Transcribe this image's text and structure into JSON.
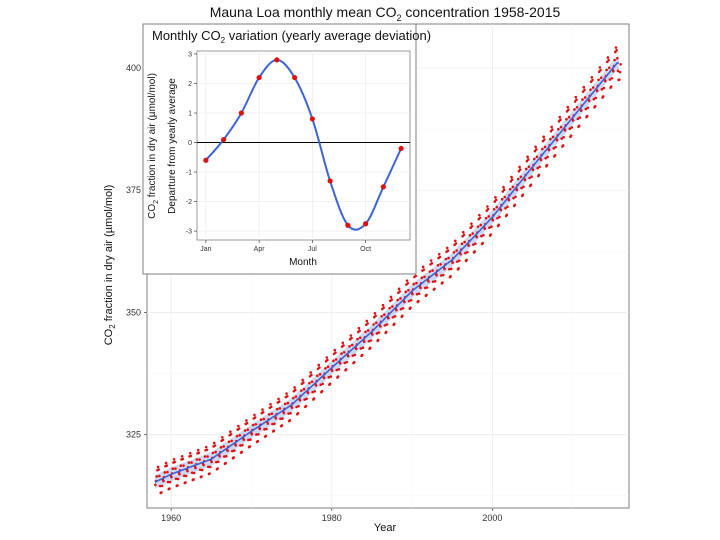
{
  "chart_data": [
    {
      "id": "main",
      "type": "scatter",
      "title": "Mauna Loa monthly mean CO2 concentration 1958-2015",
      "title_parts": [
        "Mauna Loa monthly mean CO",
        "2",
        " concentration 1958-2015"
      ],
      "xlabel": "Year",
      "ylabel": "CO2 fraction in dry air (µmol/mol)",
      "ylabel_parts": [
        "CO",
        "2",
        " fraction in dry air (µmol/mol)"
      ],
      "xlim": [
        1957,
        2017
      ],
      "ylim": [
        310,
        409
      ],
      "x_ticks": [
        1960,
        1980,
        2000
      ],
      "x_tick_labels": [
        "1960",
        "1980",
        "2000"
      ],
      "y_ticks": [
        325,
        350,
        375,
        400
      ],
      "y_tick_labels": [
        "325",
        "350",
        "375",
        "400"
      ],
      "trend_anchor_years": [
        1958,
        1960,
        1965,
        1970,
        1975,
        1980,
        1985,
        1990,
        1995,
        2000,
        2005,
        2010,
        2015.5
      ],
      "trend_anchor_values": [
        315.3,
        316.9,
        320.0,
        325.7,
        331.1,
        338.7,
        346.1,
        354.4,
        360.8,
        369.5,
        379.8,
        389.9,
        401.0
      ],
      "year_range": [
        1958,
        2015
      ],
      "points_color": "#dd1111",
      "trend_color": "#3c64d4",
      "trend_band_color": "#a9b7e6",
      "grid": true
    },
    {
      "id": "inset",
      "type": "line",
      "title": "Monthly CO2 variation (yearly average deviation)",
      "title_parts": [
        "Monthly CO",
        "2",
        " variation (yearly average deviation)"
      ],
      "xlabel": "Month",
      "ylabel_line1_parts": [
        "CO",
        "2",
        " fraction in dry air (µmol/mol)"
      ],
      "ylabel_line2": "Departure from yearly average",
      "x": [
        1,
        2,
        3,
        4,
        5,
        6,
        7,
        8,
        9,
        10,
        11,
        12
      ],
      "values": [
        -0.6,
        0.1,
        1.0,
        2.2,
        2.8,
        2.2,
        0.8,
        -1.3,
        -2.8,
        -2.75,
        -1.5,
        -0.2
      ],
      "xlim": [
        0.5,
        12.5
      ],
      "ylim": [
        -3.3,
        3.1
      ],
      "x_ticks": [
        1,
        4,
        7,
        10
      ],
      "x_tick_labels": [
        "Jan",
        "Apr",
        "Jul",
        "Oct"
      ],
      "y_ticks": [
        3,
        2,
        1,
        0,
        -1,
        -2,
        -3
      ],
      "y_tick_labels": [
        "3",
        "2",
        "1",
        "0",
        "-1",
        "-2",
        "-3"
      ],
      "zero_line": true,
      "line_color": "#3c64d4",
      "point_color": "#dd1111",
      "grid": true
    }
  ]
}
